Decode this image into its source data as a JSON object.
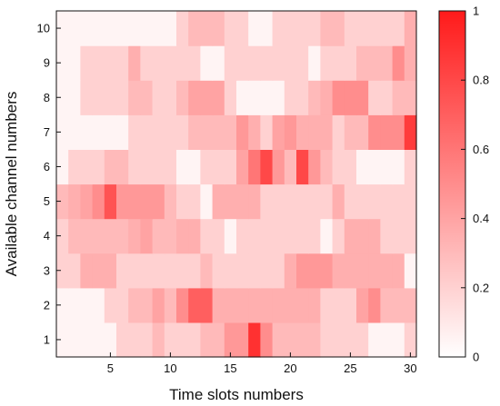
{
  "chart_data": {
    "type": "heatmap",
    "title": "",
    "xlabel": "Time slots numbers",
    "ylabel": "Available channel numbers",
    "x_ticks": [
      5,
      10,
      15,
      20,
      25,
      30
    ],
    "y_ticks": [
      1,
      2,
      3,
      4,
      5,
      6,
      7,
      8,
      9,
      10
    ],
    "colorbar": {
      "min": 0,
      "max": 1,
      "ticks": [
        "0",
        "0.2",
        "0.4",
        "0.6",
        "0.8",
        "1"
      ],
      "low_color": "#ffffff",
      "high_color": "#ff1a1a"
    },
    "x": [
      1,
      2,
      3,
      4,
      5,
      6,
      7,
      8,
      9,
      10,
      11,
      12,
      13,
      14,
      15,
      16,
      17,
      18,
      19,
      20,
      21,
      22,
      23,
      24,
      25,
      26,
      27,
      28,
      29,
      30
    ],
    "y": [
      1,
      2,
      3,
      4,
      5,
      6,
      7,
      8,
      9,
      10
    ],
    "values": [
      [
        0.05,
        0.05,
        0.05,
        0.05,
        0.05,
        0.2,
        0.2,
        0.2,
        0.3,
        0.2,
        0.2,
        0.2,
        0.3,
        0.3,
        0.45,
        0.45,
        0.9,
        0.5,
        0.3,
        0.3,
        0.3,
        0.3,
        0.2,
        0.2,
        0.2,
        0.2,
        0.05,
        0.05,
        0.05,
        0.2
      ],
      [
        0.05,
        0.05,
        0.05,
        0.05,
        0.2,
        0.2,
        0.3,
        0.3,
        0.4,
        0.3,
        0.5,
        0.7,
        0.7,
        0.35,
        0.35,
        0.35,
        0.35,
        0.35,
        0.35,
        0.35,
        0.35,
        0.35,
        0.2,
        0.2,
        0.2,
        0.4,
        0.5,
        0.3,
        0.3,
        0.3
      ],
      [
        0.2,
        0.2,
        0.35,
        0.35,
        0.35,
        0.2,
        0.2,
        0.2,
        0.2,
        0.2,
        0.2,
        0.2,
        0.3,
        0.2,
        0.2,
        0.2,
        0.2,
        0.2,
        0.2,
        0.35,
        0.45,
        0.45,
        0.45,
        0.35,
        0.35,
        0.35,
        0.35,
        0.35,
        0.35,
        0.05
      ],
      [
        0.2,
        0.3,
        0.3,
        0.3,
        0.3,
        0.3,
        0.35,
        0.4,
        0.3,
        0.3,
        0.35,
        0.35,
        0.2,
        0.2,
        0.05,
        0.2,
        0.2,
        0.2,
        0.2,
        0.2,
        0.2,
        0.2,
        0.05,
        0.2,
        0.35,
        0.35,
        0.35,
        0.2,
        0.2,
        0.2
      ],
      [
        0.3,
        0.35,
        0.4,
        0.5,
        0.75,
        0.45,
        0.45,
        0.45,
        0.45,
        0.3,
        0.2,
        0.2,
        0.05,
        0.35,
        0.35,
        0.35,
        0.35,
        0.2,
        0.2,
        0.2,
        0.2,
        0.2,
        0.2,
        0.35,
        0.2,
        0.2,
        0.2,
        0.2,
        0.2,
        0.2
      ],
      [
        0.05,
        0.2,
        0.2,
        0.2,
        0.3,
        0.3,
        0.2,
        0.2,
        0.2,
        0.2,
        0.05,
        0.05,
        0.2,
        0.2,
        0.2,
        0.4,
        0.6,
        0.8,
        0.45,
        0.3,
        0.8,
        0.45,
        0.3,
        0.2,
        0.2,
        0.05,
        0.05,
        0.05,
        0.05,
        0.2
      ],
      [
        0.05,
        0.05,
        0.05,
        0.05,
        0.05,
        0.05,
        0.2,
        0.2,
        0.2,
        0.2,
        0.2,
        0.3,
        0.3,
        0.3,
        0.3,
        0.45,
        0.35,
        0.2,
        0.4,
        0.45,
        0.35,
        0.35,
        0.35,
        0.2,
        0.3,
        0.3,
        0.5,
        0.5,
        0.5,
        0.85
      ],
      [
        0.05,
        0.05,
        0.2,
        0.2,
        0.2,
        0.2,
        0.3,
        0.3,
        0.2,
        0.2,
        0.3,
        0.4,
        0.4,
        0.4,
        0.2,
        0.05,
        0.05,
        0.05,
        0.05,
        0.2,
        0.2,
        0.3,
        0.35,
        0.5,
        0.5,
        0.5,
        0.2,
        0.2,
        0.3,
        0.3
      ],
      [
        0.05,
        0.05,
        0.2,
        0.2,
        0.2,
        0.2,
        0.35,
        0.2,
        0.2,
        0.2,
        0.2,
        0.2,
        0.05,
        0.05,
        0.2,
        0.2,
        0.2,
        0.2,
        0.2,
        0.2,
        0.2,
        0.05,
        0.2,
        0.2,
        0.2,
        0.3,
        0.3,
        0.3,
        0.5,
        0.35
      ],
      [
        0.05,
        0.05,
        0.05,
        0.05,
        0.05,
        0.05,
        0.05,
        0.05,
        0.05,
        0.05,
        0.2,
        0.3,
        0.3,
        0.3,
        0.2,
        0.2,
        0.05,
        0.05,
        0.2,
        0.2,
        0.2,
        0.2,
        0.3,
        0.3,
        0.2,
        0.2,
        0.2,
        0.2,
        0.2,
        0.35
      ]
    ]
  }
}
